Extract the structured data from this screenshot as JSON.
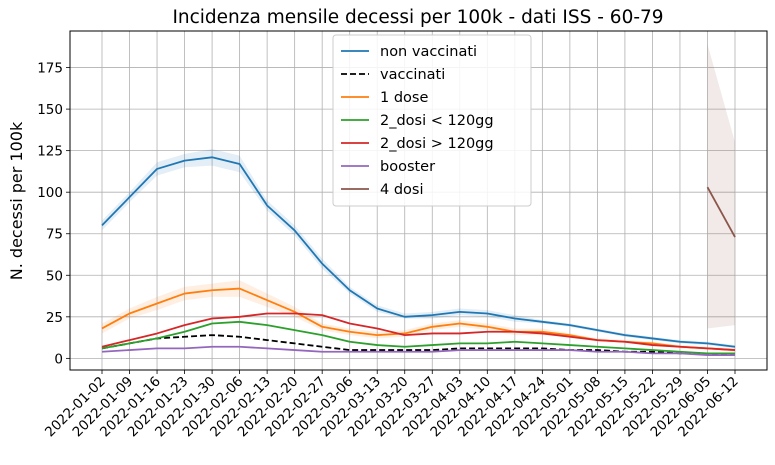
{
  "chart_data": {
    "type": "line",
    "title": "Incidenza mensile decessi per 100k - dati ISS - 60-79",
    "xlabel": "",
    "ylabel": "N. decessi per 100k",
    "ylim": [
      -7,
      197
    ],
    "yticks": [
      0,
      25,
      50,
      75,
      100,
      125,
      150,
      175
    ],
    "grid": true,
    "legend_position": "top-center",
    "categories": [
      "2022-01-02",
      "2022-01-09",
      "2022-01-16",
      "2022-01-23",
      "2022-01-30",
      "2022-02-06",
      "2022-02-13",
      "2022-02-20",
      "2022-02-27",
      "2022-03-06",
      "2022-03-13",
      "2022-03-20",
      "2022-03-27",
      "2022-04-03",
      "2022-04-10",
      "2022-04-17",
      "2022-04-24",
      "2022-05-01",
      "2022-05-08",
      "2022-05-15",
      "2022-05-22",
      "2022-05-29",
      "2022-06-05",
      "2022-06-12"
    ],
    "series": [
      {
        "name": "non vaccinati",
        "color": "#1f77b4",
        "dash": "solid",
        "values": [
          80,
          97,
          114,
          119,
          121,
          117,
          92,
          77,
          57,
          41,
          30,
          25,
          26,
          28,
          27,
          24,
          22,
          20,
          17,
          14,
          12,
          10,
          9,
          7
        ],
        "band_lower": [
          77,
          94,
          110,
          115,
          116,
          112,
          89,
          74,
          54,
          39,
          28,
          24,
          24,
          26,
          25,
          22,
          21,
          19,
          16,
          13,
          11,
          9,
          8,
          6
        ],
        "band_upper": [
          83,
          100,
          118,
          123,
          126,
          122,
          95,
          80,
          60,
          43,
          32,
          27,
          28,
          30,
          29,
          26,
          23,
          21,
          18,
          15,
          13,
          11,
          10,
          8
        ]
      },
      {
        "name": "vaccinati",
        "color": "#000000",
        "dash": "dashed",
        "values": [
          6,
          9,
          12,
          13,
          14,
          13,
          11,
          9,
          7,
          5,
          5,
          5,
          5,
          6,
          6,
          6,
          6,
          5,
          5,
          4,
          4,
          3,
          3,
          2
        ]
      },
      {
        "name": "1 dose",
        "color": "#ff7f0e",
        "dash": "solid",
        "values": [
          18,
          27,
          33,
          39,
          41,
          42,
          35,
          28,
          19,
          16,
          14,
          15,
          19,
          21,
          19,
          16,
          16,
          14,
          11,
          10,
          9,
          7,
          6,
          5
        ],
        "band_lower": [
          15,
          24,
          29,
          35,
          37,
          37,
          31,
          25,
          17,
          14,
          12,
          13,
          17,
          19,
          17,
          14,
          14,
          13,
          10,
          9,
          8,
          6,
          5,
          4
        ],
        "band_upper": [
          21,
          30,
          37,
          43,
          45,
          47,
          39,
          31,
          21,
          18,
          16,
          17,
          21,
          23,
          21,
          18,
          18,
          15,
          12,
          11,
          10,
          8,
          7,
          6
        ]
      },
      {
        "name": "2_dosi < 120gg",
        "color": "#2ca02c",
        "dash": "solid",
        "values": [
          6,
          9,
          12,
          16,
          21,
          22,
          20,
          17,
          14,
          10,
          8,
          7,
          8,
          9,
          9,
          10,
          9,
          8,
          7,
          6,
          5,
          4,
          3,
          3
        ]
      },
      {
        "name": "2_dosi > 120gg",
        "color": "#d62728",
        "dash": "solid",
        "values": [
          7,
          11,
          15,
          20,
          24,
          25,
          27,
          27,
          26,
          21,
          18,
          14,
          15,
          15,
          16,
          16,
          15,
          13,
          11,
          10,
          8,
          7,
          6,
          5
        ]
      },
      {
        "name": "booster",
        "color": "#9467bd",
        "dash": "solid",
        "values": [
          4,
          5,
          6,
          6,
          7,
          7,
          6,
          5,
          4,
          4,
          4,
          4,
          4,
          5,
          5,
          5,
          5,
          5,
          4,
          4,
          3,
          3,
          2,
          2
        ]
      },
      {
        "name": "4 dosi",
        "color": "#8c564b",
        "dash": "solid",
        "values": [
          null,
          null,
          null,
          null,
          null,
          null,
          null,
          null,
          null,
          null,
          null,
          null,
          null,
          null,
          null,
          null,
          null,
          null,
          null,
          null,
          null,
          null,
          103,
          73
        ],
        "band_lower": [
          null,
          null,
          null,
          null,
          null,
          null,
          null,
          null,
          null,
          null,
          null,
          null,
          null,
          null,
          null,
          null,
          null,
          null,
          null,
          null,
          null,
          null,
          18,
          20
        ],
        "band_upper": [
          null,
          null,
          null,
          null,
          null,
          null,
          null,
          null,
          null,
          null,
          null,
          null,
          null,
          null,
          null,
          null,
          null,
          null,
          null,
          null,
          null,
          null,
          189,
          130
        ]
      }
    ]
  }
}
